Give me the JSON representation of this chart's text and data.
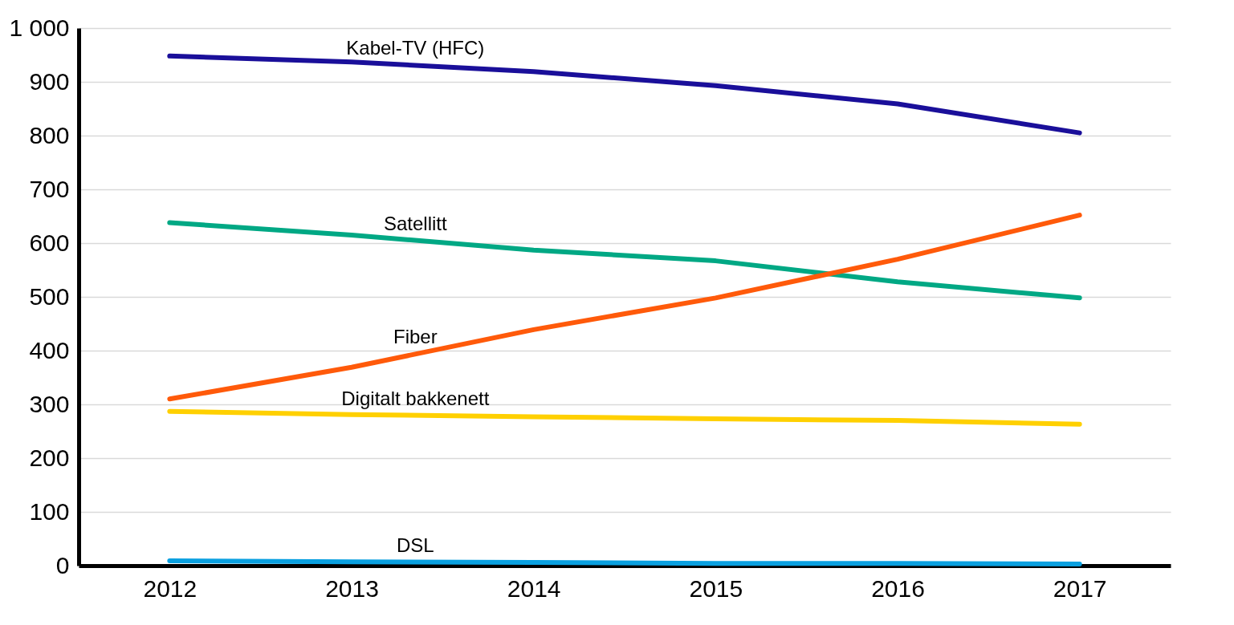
{
  "chart_data": {
    "type": "line",
    "x": [
      2012,
      2013,
      2014,
      2015,
      2016,
      2017
    ],
    "xlim": [
      2011.5,
      2017.5
    ],
    "xticks": [
      2012,
      2013,
      2014,
      2015,
      2016,
      2017
    ],
    "ylim": [
      0,
      1000
    ],
    "yticks": [
      0,
      100,
      200,
      300,
      400,
      500,
      600,
      700,
      800,
      900,
      {
        "value": 1000,
        "label": "1 000"
      }
    ],
    "grid": "y",
    "legend": false,
    "series": [
      {
        "name": "Kabel-TV (HFC)",
        "color": "#1a0f9a",
        "values": [
          948,
          937,
          919,
          893,
          859,
          805
        ]
      },
      {
        "name": "Satellitt",
        "color": "#00a884",
        "values": [
          638,
          615,
          587,
          567,
          528,
          498
        ]
      },
      {
        "name": "Fiber",
        "color": "#ff5a0a",
        "values": [
          310,
          369,
          439,
          498,
          570,
          652
        ]
      },
      {
        "name": "Digitalt bakkenett",
        "color": "#ffd000",
        "values": [
          287,
          281,
          277,
          273,
          270,
          263
        ]
      },
      {
        "name": "DSL",
        "color": "#0aa0e0",
        "values": [
          9,
          7,
          6,
          4,
          4,
          3
        ]
      }
    ]
  }
}
